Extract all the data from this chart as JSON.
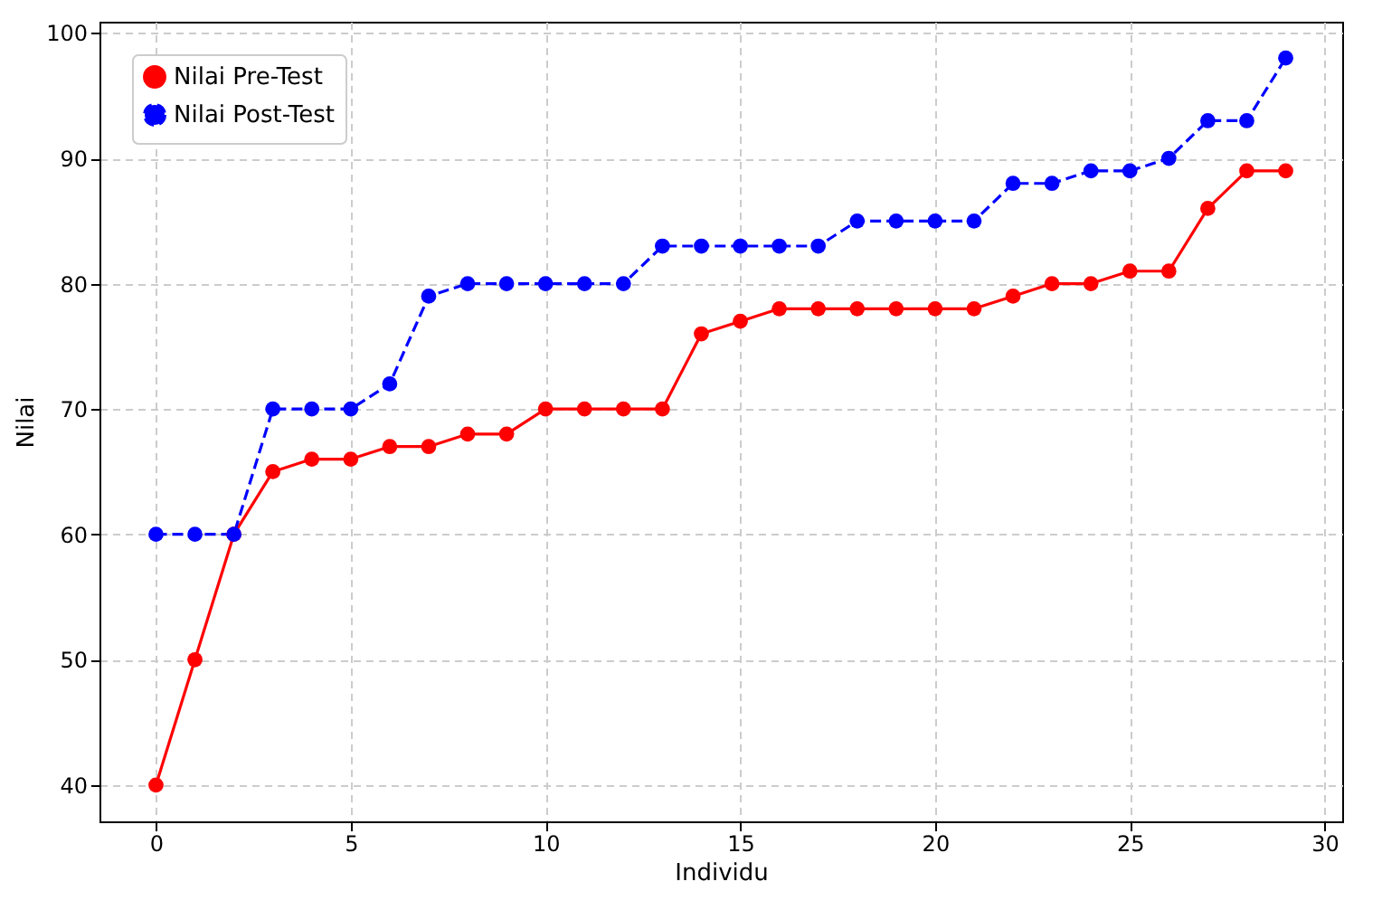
{
  "chart_data": {
    "type": "line",
    "xlabel": "Individu",
    "ylabel": "Nilai",
    "x": [
      0,
      1,
      2,
      3,
      4,
      5,
      6,
      7,
      8,
      9,
      10,
      11,
      12,
      13,
      14,
      15,
      16,
      17,
      18,
      19,
      20,
      21,
      22,
      23,
      24,
      25,
      26,
      27,
      28,
      29
    ],
    "series": [
      {
        "name": "Nilai Pre-Test",
        "color": "#ff0000",
        "line_style": "solid",
        "values": [
          40,
          50,
          60,
          65,
          66,
          66,
          67,
          67,
          68,
          68,
          70,
          70,
          70,
          70,
          76,
          77,
          78,
          78,
          78,
          78,
          78,
          78,
          79,
          80,
          80,
          81,
          81,
          86,
          89,
          89
        ]
      },
      {
        "name": "Nilai Post-Test",
        "color": "#0000ff",
        "line_style": "dashed",
        "values": [
          60,
          60,
          60,
          70,
          70,
          70,
          72,
          79,
          80,
          80,
          80,
          80,
          80,
          83,
          83,
          83,
          83,
          83,
          85,
          85,
          85,
          85,
          88,
          88,
          89,
          89,
          90,
          93,
          93,
          98
        ]
      }
    ],
    "xlim": [
      -1.45,
      30.45
    ],
    "xticks": [
      0,
      5,
      10,
      15,
      20,
      25,
      30
    ],
    "ylim": [
      37.1,
      100.9
    ],
    "yticks": [
      40,
      50,
      60,
      70,
      80,
      90,
      100
    ],
    "grid": true,
    "legend": "top left",
    "marker": "circle"
  }
}
